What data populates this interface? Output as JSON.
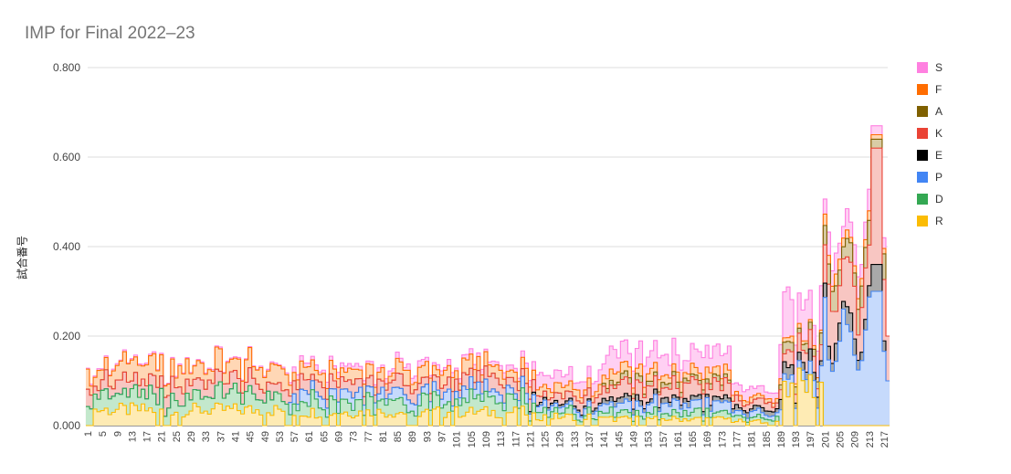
{
  "chart_data": {
    "type": "area",
    "stacked": true,
    "step": true,
    "title": "IMP for Final 2022–23",
    "ylabel": "試合番号",
    "xlabel": "",
    "ylim": [
      0,
      0.8
    ],
    "yticks": [
      "0.000",
      "0.200",
      "0.400",
      "0.600",
      "0.800"
    ],
    "x_range": [
      1,
      218
    ],
    "x_tick_labels": [
      1,
      5,
      9,
      13,
      17,
      21,
      25,
      29,
      33,
      37,
      41,
      45,
      49,
      53,
      57,
      61,
      65,
      69,
      73,
      77,
      81,
      85,
      89,
      93,
      97,
      101,
      105,
      109,
      113,
      117,
      121,
      125,
      129,
      133,
      137,
      141,
      145,
      149,
      153,
      157,
      161,
      165,
      169,
      173,
      177,
      181,
      185,
      189,
      193,
      197,
      201,
      205,
      209,
      213,
      217
    ],
    "legend_position": "right",
    "grid": true,
    "series_order_bottom_to_top": [
      "R",
      "D",
      "P",
      "E",
      "K",
      "A",
      "F",
      "S"
    ],
    "series": [
      {
        "name": "S",
        "color": "#ff80e0",
        "fill": "#ffd0f3"
      },
      {
        "name": "F",
        "color": "#ff6d01",
        "fill": "#ffd7b5"
      },
      {
        "name": "A",
        "color": "#7f6000",
        "fill": "#d9cca6"
      },
      {
        "name": "K",
        "color": "#ea4335",
        "fill": "#f8c6c2"
      },
      {
        "name": "E",
        "color": "#000000",
        "fill": "#a9a9a9"
      },
      {
        "name": "P",
        "color": "#4285f4",
        "fill": "#c6dafc"
      },
      {
        "name": "D",
        "color": "#34a853",
        "fill": "#c3e8cc"
      },
      {
        "name": "R",
        "color": "#fbbc04",
        "fill": "#feebb4"
      }
    ],
    "segments": [
      {
        "from": 1,
        "to": 55,
        "values": {
          "R": 0.035,
          "D": 0.035,
          "P": 0.0,
          "E": 0.0,
          "K": 0.03,
          "A": 0.0,
          "F": 0.035,
          "S": 0.003
        }
      },
      {
        "from": 56,
        "to": 120,
        "values": {
          "R": 0.03,
          "D": 0.03,
          "P": 0.02,
          "E": 0.0,
          "K": 0.025,
          "A": 0.0,
          "F": 0.025,
          "S": 0.01
        }
      },
      {
        "from": 121,
        "to": 140,
        "values": {
          "R": 0.02,
          "D": 0.015,
          "P": 0.015,
          "E": 0.005,
          "K": 0.02,
          "A": 0.0,
          "F": 0.02,
          "S": 0.025
        }
      },
      {
        "from": 141,
        "to": 175,
        "values": {
          "R": 0.015,
          "D": 0.015,
          "P": 0.02,
          "E": 0.01,
          "K": 0.03,
          "A": 0.01,
          "F": 0.02,
          "S": 0.04
        }
      },
      {
        "from": 176,
        "to": 188,
        "values": {
          "R": 0.01,
          "D": 0.01,
          "P": 0.01,
          "E": 0.01,
          "K": 0.015,
          "A": 0.0,
          "F": 0.01,
          "S": 0.02
        }
      },
      {
        "from": 189,
        "to": 200,
        "values": {
          "R": 0.09,
          "D": 0.0,
          "P": 0.03,
          "E": 0.02,
          "K": 0.03,
          "A": 0.02,
          "F": 0.01,
          "S": 0.08
        }
      },
      {
        "from": 201,
        "to": 218,
        "values": {
          "R": 0.0,
          "D": 0.0,
          "P": 0.2,
          "E": 0.03,
          "K": 0.1,
          "A": 0.04,
          "F": 0.02,
          "S": 0.04
        }
      }
    ]
  }
}
